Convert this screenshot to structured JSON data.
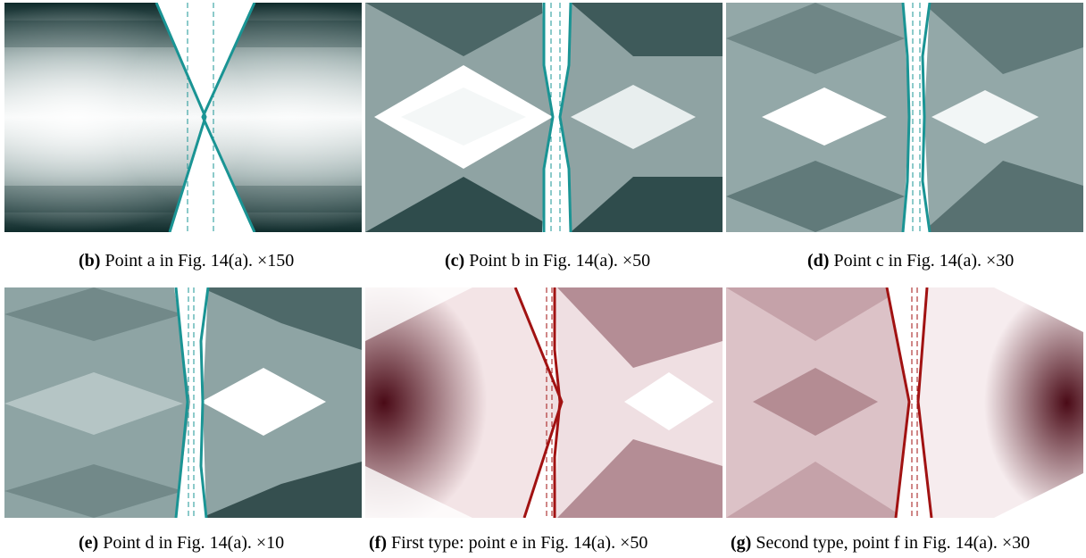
{
  "figure": {
    "panels": [
      {
        "id": "b",
        "label": "(b)",
        "text": "Point a in Fig. 14(a).",
        "magnification": "×150",
        "palette": "teal"
      },
      {
        "id": "c",
        "label": "(c)",
        "text": "Point b in Fig. 14(a).",
        "magnification": "×50",
        "palette": "teal"
      },
      {
        "id": "d",
        "label": "(d)",
        "text": "Point c in Fig. 14(a).",
        "magnification": "×30",
        "palette": "teal"
      },
      {
        "id": "e",
        "label": "(e)",
        "text": "Point d in Fig. 14(a).",
        "magnification": "×10",
        "palette": "teal"
      },
      {
        "id": "f",
        "label": "(f)",
        "text": "First type: point e in Fig. 14(a).",
        "magnification": "×50",
        "palette": "maroon"
      },
      {
        "id": "g",
        "label": "(g)",
        "text": "Second type, point f in Fig. 14(a).",
        "magnification": "×30",
        "palette": "maroon"
      }
    ],
    "colors": {
      "teal_dark": "#0c2a2a",
      "teal_light": "#ffffff",
      "teal_line": "#1a9494",
      "maroon_dark": "#4a0a16",
      "maroon_light": "#ffffff",
      "maroon_line": "#a11212"
    }
  }
}
